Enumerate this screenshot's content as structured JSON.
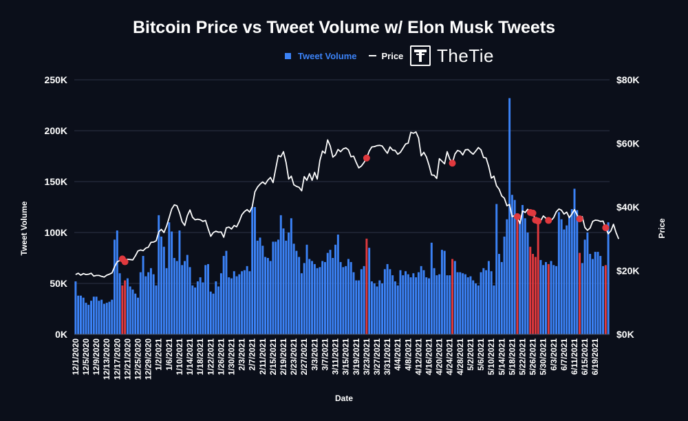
{
  "header": {
    "title": "Bitcoin Price vs Tweet Volume w/ Elon Musk Tweets",
    "brand": "TheTie"
  },
  "legend": {
    "volume_label": "Tweet Volume",
    "price_label": "Price"
  },
  "colors": {
    "background": "#0b0f1a",
    "volume_bar": "#3b82f6",
    "musk_bar": "#e0393e",
    "price_line": "#ffffff",
    "musk_marker": "#e0393e"
  },
  "chart_data": {
    "type": "bar",
    "title": "Bitcoin Price vs Tweet Volume w/ Elon Musk Tweets",
    "xlabel": "Date",
    "ylabel": "Tweet Volume",
    "y2label": "Price",
    "ylim": [
      0,
      250000
    ],
    "y2lim": [
      0,
      80000
    ],
    "grid": true,
    "legend_position": "top",
    "y_ticks": [
      "0K",
      "50K",
      "100K",
      "150K",
      "200K",
      "250K"
    ],
    "y2_ticks": [
      "$0K",
      "$20K",
      "$40K",
      "$60K",
      "$80K"
    ],
    "x_tick_labels": [
      "12/1/2020",
      "12/5/2020",
      "12/9/2020",
      "12/13/2020",
      "12/17/2020",
      "12/21/2020",
      "12/25/2020",
      "12/29/2020",
      "1/2/2021",
      "1/6/2021",
      "1/10/2021",
      "1/14/2021",
      "1/18/2021",
      "1/22/2021",
      "1/26/2021",
      "1/30/2021",
      "2/3/2021",
      "2/7/2021",
      "2/11/2021",
      "2/15/2021",
      "2/19/2021",
      "2/23/2021",
      "2/27/2021",
      "3/3/2021",
      "3/7/2021",
      "3/11/2021",
      "3/15/2021",
      "3/19/2021",
      "3/23/2021",
      "3/27/2021",
      "3/31/2021",
      "4/4/2021",
      "4/8/2021",
      "4/12/2021",
      "4/16/2021",
      "4/20/2021",
      "4/24/2021",
      "4/28/2021",
      "5/2/2021",
      "5/6/2021",
      "5/10/2021",
      "5/14/2021",
      "5/18/2021",
      "5/22/2021",
      "5/26/2021",
      "5/30/2021",
      "6/3/2021",
      "6/7/2021",
      "6/11/2021",
      "6/15/2021",
      "6/19/2021"
    ],
    "x_start": "2020-12-01",
    "volume": [
      52000,
      38000,
      38000,
      36000,
      31000,
      29000,
      33000,
      37000,
      37000,
      33000,
      34000,
      30000,
      31000,
      32000,
      34000,
      93000,
      102000,
      60000,
      48000,
      53000,
      55000,
      47000,
      44000,
      40000,
      36000,
      61000,
      77000,
      57000,
      61000,
      65000,
      59000,
      48000,
      117000,
      96000,
      86000,
      65000,
      110000,
      101000,
      75000,
      72000,
      102000,
      68000,
      72000,
      78000,
      66000,
      48000,
      46000,
      52000,
      56000,
      51000,
      68000,
      69000,
      42000,
      40000,
      52000,
      47000,
      60000,
      77000,
      82000,
      56000,
      55000,
      62000,
      57000,
      59000,
      62000,
      63000,
      67000,
      62000,
      125000,
      125000,
      92000,
      95000,
      87000,
      76000,
      75000,
      72000,
      91000,
      91000,
      93000,
      117000,
      104000,
      92000,
      100000,
      114000,
      89000,
      82000,
      76000,
      60000,
      70000,
      88000,
      74000,
      72000,
      69000,
      65000,
      66000,
      72000,
      71000,
      80000,
      83000,
      75000,
      88000,
      98000,
      71000,
      66000,
      67000,
      74000,
      71000,
      61000,
      53000,
      53000,
      64000,
      67000,
      94000,
      85000,
      52000,
      50000,
      47000,
      53000,
      50000,
      64000,
      69000,
      64000,
      58000,
      52000,
      48000,
      63000,
      58000,
      62000,
      59000,
      56000,
      60000,
      56000,
      61000,
      67000,
      63000,
      56000,
      55000,
      90000,
      65000,
      58000,
      59000,
      83000,
      82000,
      58000,
      58000,
      74000,
      72000,
      61000,
      61000,
      60000,
      59000,
      56000,
      57000,
      53000,
      50000,
      48000,
      61000,
      65000,
      63000,
      72000,
      62000,
      48000,
      128000,
      79000,
      71000,
      96000,
      113000,
      232000,
      137000,
      132000,
      118000,
      110000,
      127000,
      114000,
      100000,
      86000,
      79000,
      76000,
      114000,
      73000,
      68000,
      71000,
      69000,
      72000,
      68000,
      67000,
      120000,
      113000,
      103000,
      107000,
      116000,
      123000,
      143000,
      122000,
      80000,
      70000,
      93000,
      100000,
      79000,
      74000,
      81000,
      81000,
      77000,
      67000,
      68000,
      110000
    ],
    "price": [
      18800,
      19200,
      18600,
      19100,
      18800,
      18900,
      19200,
      18300,
      18500,
      18500,
      18200,
      18000,
      18600,
      18900,
      19300,
      21200,
      22800,
      23200,
      23700,
      22800,
      23600,
      23500,
      23400,
      24700,
      26200,
      26500,
      26300,
      27100,
      27400,
      28900,
      29000,
      29400,
      32200,
      33000,
      32000,
      34000,
      36600,
      39400,
      40700,
      40400,
      38200,
      35400,
      34200,
      37300,
      39100,
      36800,
      36000,
      36200,
      36000,
      35500,
      35800,
      33200,
      30800,
      32000,
      32400,
      32100,
      32200,
      30500,
      33500,
      33700,
      33100,
      34200,
      33800,
      35500,
      37600,
      38600,
      39200,
      38400,
      40200,
      44800,
      46300,
      47200,
      47900,
      47200,
      48500,
      49300,
      47700,
      52000,
      56200,
      55800,
      57400,
      54000,
      48800,
      49700,
      47000,
      46500,
      46200,
      45100,
      49600,
      48400,
      50500,
      48400,
      50900,
      48800,
      54600,
      57600,
      56900,
      61100,
      59200,
      55700,
      56400,
      58100,
      57400,
      58300,
      58600,
      58000,
      55800,
      56000,
      54000,
      52300,
      52900,
      54000,
      55400,
      57600,
      58900,
      59000,
      59300,
      59400,
      59200,
      58000,
      56900,
      58900,
      57900,
      57800,
      56600,
      57200,
      58500,
      59800,
      60100,
      63500,
      63200,
      63600,
      61700,
      56100,
      57200,
      55800,
      53200,
      50100,
      50000,
      49000,
      55200,
      54400,
      53600,
      57400,
      55100,
      53800,
      56700,
      57800,
      57500,
      56400,
      58000,
      58100,
      57300,
      56600,
      57600,
      58700,
      58000,
      55600,
      55400,
      52700,
      49100,
      49700,
      46700,
      45600,
      43500,
      42800,
      40400,
      40800,
      37000,
      37300,
      37000,
      34800,
      38800,
      38300,
      39300,
      38300,
      38100,
      35900,
      35600,
      35700,
      37200,
      36500,
      35800,
      35800,
      36700,
      38500,
      39400,
      39000,
      37800,
      38400,
      36700,
      37800,
      39200,
      37500,
      36300,
      37000,
      33600,
      32700,
      33400,
      35500,
      35900,
      35800,
      35500,
      35600,
      33500,
      31600,
      32500,
      34600,
      32000,
      30000
    ],
    "musk_tweet_indices": [
      18,
      19,
      112,
      145,
      170,
      175,
      176,
      177,
      178,
      182,
      194,
      204
    ]
  }
}
